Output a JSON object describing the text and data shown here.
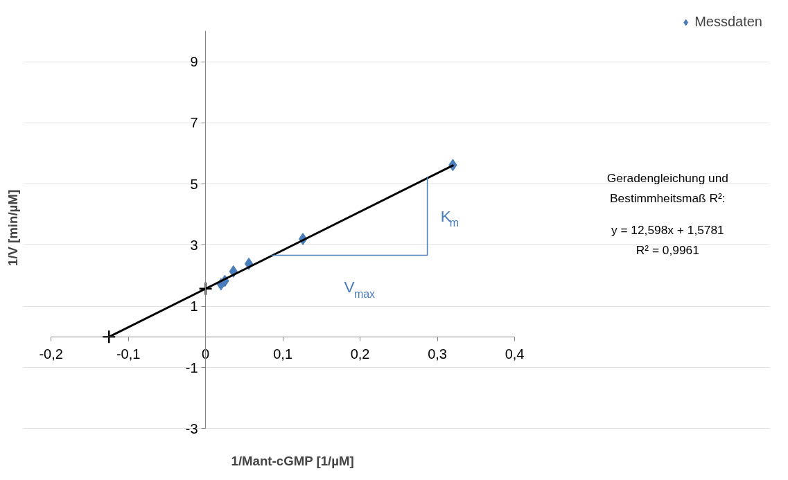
{
  "chart_data": {
    "type": "scatter",
    "xlabel": "1/Mant-cGMP [1/µM]",
    "ylabel": "1/V [min/µM]",
    "series": [
      {
        "name": "Messdaten",
        "marker": "diamond",
        "color": "#4a7ebb",
        "x": [
          0.32,
          0.126,
          0.056,
          0.036,
          0.025,
          0.02
        ],
        "values": [
          5.62,
          3.2,
          2.39,
          2.14,
          1.83,
          1.72
        ]
      },
      {
        "type": "line",
        "color": "#000000",
        "x": [
          -0.125,
          0.321
        ],
        "values": [
          0,
          5.62
        ]
      },
      {
        "type": "line",
        "color": "#4a7ebb",
        "x": [
          0.085,
          0.287,
          0.287
        ],
        "values": [
          2.67,
          2.67,
          5.24
        ]
      },
      {
        "marker": "cross",
        "color": "#000000",
        "x": [
          -0.125,
          0
        ],
        "values": [
          0,
          1.58
        ]
      }
    ],
    "xlim": [
      -0.2,
      0.4
    ],
    "ylim": [
      -3,
      10
    ],
    "xticks": [
      {
        "value": -0.2,
        "label": "-0,2"
      },
      {
        "value": -0.1,
        "label": "-0,1"
      },
      0,
      {
        "value": 0.1,
        "label": "0,1"
      },
      {
        "value": 0.2,
        "label": "0,2"
      },
      {
        "value": 0.3,
        "label": "0,3"
      },
      {
        "value": 0.4,
        "label": "0,4"
      }
    ],
    "yticks": [
      -3,
      -1,
      1,
      3,
      5,
      7,
      9
    ],
    "grid": "y",
    "legend": "top right",
    "annotations": [
      "K$_{m}$",
      "V$_{max}$",
      "Geradengleichung und",
      "Bestimmheitsmaß R²:",
      "y = 12,598x + 1,5781",
      "R² = 0,9961"
    ]
  }
}
